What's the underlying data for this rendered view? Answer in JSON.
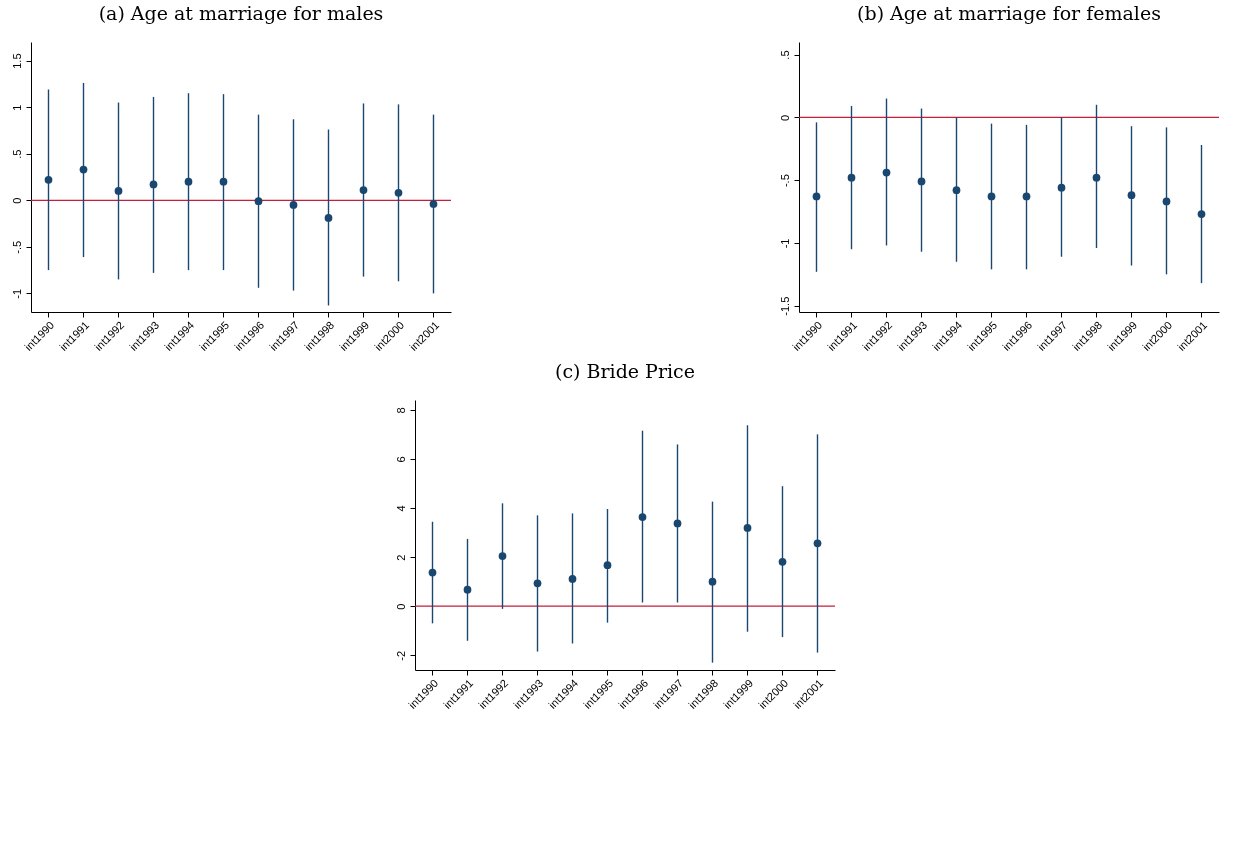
{
  "chart_data": [
    {
      "type": "scatter",
      "title": "(a) Age at marriage for males",
      "categories": [
        "int1990",
        "int1991",
        "int1992",
        "int1993",
        "int1994",
        "int1995",
        "int1996",
        "int1997",
        "int1998",
        "int1999",
        "int2000",
        "int2001"
      ],
      "series": [
        {
          "color": "#1a476f",
          "values": [
            0.22,
            0.33,
            0.1,
            0.17,
            0.2,
            0.2,
            -0.01,
            -0.05,
            -0.19,
            0.11,
            0.08,
            -0.04
          ],
          "errors": [
            [
              -0.75,
              1.19
            ],
            [
              -0.61,
              1.26
            ],
            [
              -0.85,
              1.05
            ],
            [
              -0.78,
              1.11
            ],
            [
              -0.75,
              1.15
            ],
            [
              -0.75,
              1.14
            ],
            [
              -0.94,
              0.92
            ],
            [
              -0.97,
              0.87
            ],
            [
              -1.13,
              0.76
            ],
            [
              -0.82,
              1.04
            ],
            [
              -0.87,
              1.03
            ],
            [
              -1.0,
              0.92
            ]
          ]
        }
      ],
      "ylim": [
        -1.2,
        1.7
      ],
      "yticks": [
        {
          "value": -1,
          "label": "-1"
        },
        {
          "value": -0.5,
          "label": "-.5"
        },
        0,
        {
          "value": 0.5,
          "label": ".5"
        },
        1,
        {
          "value": 1.5,
          "label": "1.5"
        }
      ],
      "ref_lines": [
        {
          "axis": "y",
          "value": 0,
          "color": "#c41e3a"
        }
      ],
      "marker": "circle",
      "grid": false
    },
    {
      "type": "scatter",
      "title": "(b) Age at marriage for females",
      "categories": [
        "int1990",
        "int1991",
        "int1992",
        "int1993",
        "int1994",
        "int1995",
        "int1996",
        "int1997",
        "int1998",
        "int1999",
        "int2000",
        "int2001"
      ],
      "series": [
        {
          "color": "#1a476f",
          "values": [
            -0.63,
            -0.48,
            -0.44,
            -0.51,
            -0.58,
            -0.63,
            -0.63,
            -0.56,
            -0.48,
            -0.62,
            -0.67,
            -0.77
          ],
          "errors": [
            [
              -1.23,
              -0.04
            ],
            [
              -1.05,
              0.09
            ],
            [
              -1.02,
              0.15
            ],
            [
              -1.07,
              0.07
            ],
            [
              -1.15,
              0.0
            ],
            [
              -1.21,
              -0.05
            ],
            [
              -1.21,
              -0.06
            ],
            [
              -1.11,
              0.0
            ],
            [
              -1.04,
              0.1
            ],
            [
              -1.18,
              -0.07
            ],
            [
              -1.25,
              -0.08
            ],
            [
              -1.32,
              -0.22
            ]
          ]
        }
      ],
      "ylim": [
        -1.55,
        0.6
      ],
      "yticks": [
        {
          "value": -1.5,
          "label": "-1.5"
        },
        {
          "value": -1,
          "label": "-1"
        },
        {
          "value": -0.5,
          "label": "-.5"
        },
        0,
        {
          "value": 0.5,
          "label": ".5"
        }
      ],
      "ref_lines": [
        {
          "axis": "y",
          "value": 0,
          "color": "#c41e3a"
        }
      ],
      "marker": "circle",
      "grid": false
    },
    {
      "type": "scatter",
      "title": "(c) Bride Price",
      "categories": [
        "int1990",
        "int1991",
        "int1992",
        "int1993",
        "int1994",
        "int1995",
        "int1996",
        "int1997",
        "int1998",
        "int1999",
        "int2000",
        "int2001"
      ],
      "series": [
        {
          "color": "#1a476f",
          "values": [
            1.37,
            0.67,
            2.04,
            0.93,
            1.11,
            1.67,
            3.63,
            3.37,
            1.0,
            3.19,
            1.81,
            2.56
          ],
          "errors": [
            [
              -0.7,
              3.44
            ],
            [
              -1.41,
              2.74
            ],
            [
              -0.11,
              4.19
            ],
            [
              -1.85,
              3.7
            ],
            [
              -1.52,
              3.78
            ],
            [
              -0.67,
              3.96
            ],
            [
              0.15,
              7.15
            ],
            [
              0.15,
              6.59
            ],
            [
              -2.3,
              4.26
            ],
            [
              -1.04,
              7.37
            ],
            [
              -1.26,
              4.89
            ],
            [
              -1.89,
              7.0
            ]
          ]
        }
      ],
      "ylim": [
        -2.6,
        8.4
      ],
      "yticks": [
        -2,
        0,
        2,
        4,
        6,
        8
      ],
      "ref_lines": [
        {
          "axis": "y",
          "value": 0,
          "color": "#c41e3a"
        }
      ],
      "marker": "circle",
      "grid": false
    }
  ]
}
